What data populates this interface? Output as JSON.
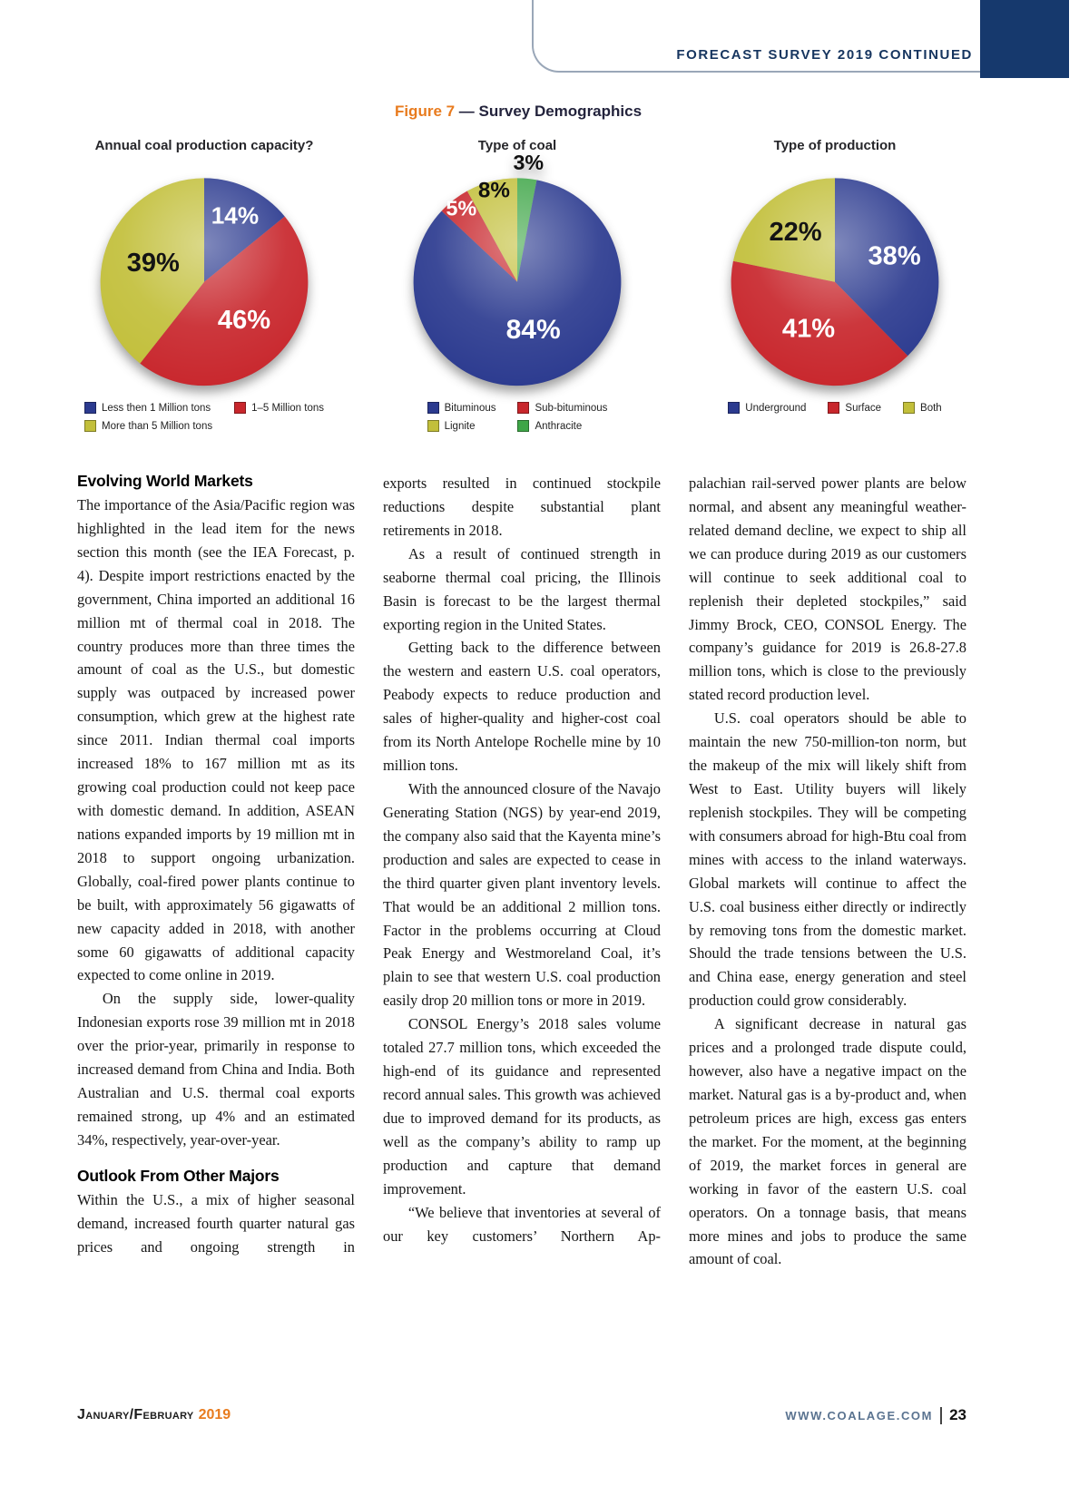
{
  "header": {
    "title": "FORECAST SURVEY 2019 CONTINUED"
  },
  "figure": {
    "label": "Figure 7",
    "title": " — Survey Demographics"
  },
  "chart_data": [
    {
      "type": "pie",
      "title": "Annual coal production capacity?",
      "legend_position": "bottom",
      "legend_columns": 2,
      "slices": [
        {
          "label": "Less then 1 Million tons",
          "value": 14,
          "pct": "14%",
          "color": "#2b3a8f",
          "label_color": "#ffffff",
          "label_r": 0.69,
          "font_size": 27
        },
        {
          "label": "1–5 Million tons",
          "value": 46,
          "pct": "46%",
          "color": "#c8262c",
          "label_color": "#ffffff",
          "label_r": 0.54,
          "font_size": 30
        },
        {
          "label": "More than 5 Million tons",
          "value": 39,
          "pct": "39%",
          "color": "#c2bf3a",
          "label_color": "#141414",
          "label_r": 0.52,
          "font_size": 30
        }
      ],
      "legend": [
        {
          "label": "Less then 1 Million tons",
          "color": "#2b3a8f"
        },
        {
          "label": "1–5 Million tons",
          "color": "#c8262c"
        },
        {
          "label": "More than 5 Million tons",
          "color": "#c2bf3a"
        }
      ]
    },
    {
      "type": "pie",
      "title": "Type of coal",
      "legend_position": "bottom",
      "legend_columns": 2,
      "slices": [
        {
          "label": "Anthracite",
          "value": 3,
          "pct": "3%",
          "color": "#3fa648",
          "label_color": "#101010",
          "label_r": 1.14,
          "font_size": 24
        },
        {
          "label": "Bituminous",
          "value": 84,
          "pct": "84%",
          "color": "#2b3a8f",
          "label_color": "#ffffff",
          "label_r": 0.5,
          "font_size": 31
        },
        {
          "label": "Sub-bituminous",
          "value": 5,
          "pct": "5%",
          "color": "#c8262c",
          "label_color": "#ffffff",
          "label_r": 0.88,
          "font_size": 24
        },
        {
          "label": "Lignite",
          "value": 8,
          "pct": "8%",
          "color": "#c2bf3a",
          "label_color": "#101010",
          "label_r": 0.9,
          "font_size": 25
        }
      ],
      "legend": [
        {
          "label": "Bituminous",
          "color": "#2b3a8f"
        },
        {
          "label": "Sub-bituminous",
          "color": "#c8262c"
        },
        {
          "label": "Lignite",
          "color": "#c2bf3a"
        },
        {
          "label": "Anthracite",
          "color": "#3fa648"
        }
      ]
    },
    {
      "type": "pie",
      "title": "Type of production",
      "legend_position": "bottom",
      "legend_columns": 3,
      "slices": [
        {
          "label": "Underground",
          "value": 38,
          "pct": "38%",
          "color": "#2b3a8f",
          "label_color": "#ffffff",
          "label_r": 0.62,
          "font_size": 30
        },
        {
          "label": "Surface",
          "value": 41,
          "pct": "41%",
          "color": "#c8262c",
          "label_color": "#ffffff",
          "label_r": 0.53,
          "font_size": 30
        },
        {
          "label": "Both",
          "value": 22,
          "pct": "22%",
          "color": "#c2bf3a",
          "label_color": "#141414",
          "label_r": 0.6,
          "font_size": 30
        }
      ],
      "legend": [
        {
          "label": "Underground",
          "color": "#2b3a8f"
        },
        {
          "label": "Surface",
          "color": "#c8262c"
        },
        {
          "label": "Both",
          "color": "#c2bf3a"
        }
      ]
    }
  ],
  "columns": {
    "col1": {
      "heading1": "Evolving World Markets",
      "para1": "The importance of the Asia/Pacific region was highlighted in the lead item for the news section this month (see the IEA Forecast, p. 4). Despite import restrictions enacted by the government, China imported an additional 16 million mt of thermal coal in 2018. The country produces more than three times the amount of coal as the U.S., but domestic supply was outpaced by increased power consumption, which grew at the highest rate since 2011. Indian thermal coal imports increased 18% to 167 million mt as its growing coal production could not keep pace with domestic demand. In addition, ASEAN nations expanded imports by 19 million mt in 2018 to support ongoing urbanization. Globally, coal-fired power plants continue to be built, with approximately 56 gigawatts of new capacity added in 2018, with another some 60 gigawatts of additional capacity expected to come online in 2019.",
      "para2": "On the supply side, lower-quality Indonesian exports rose 39 million mt in 2018 over the prior-year, primarily in response to increased demand from China and India. Both Australian and U.S. thermal coal exports remained strong, up 4% and an estimated 34%, respectively, year-over-year.",
      "heading2": "Outlook From Other Majors",
      "para3": "Within the U.S., a mix of higher seasonal demand, increased fourth quarter natural gas prices and ongoing strength in"
    },
    "col2": {
      "para1": "exports resulted in continued stockpile reductions despite substantial plant retirements in 2018.",
      "para2": "As a result of continued strength in seaborne thermal coal pricing, the Illinois Basin is forecast to be the largest thermal exporting region in the United States.",
      "para3": "Getting back to the difference between the western and eastern U.S. coal operators, Peabody expects to reduce production and sales of higher-quality and higher-cost coal from its North Antelope Rochelle mine by 10 million tons.",
      "para4": "With the announced closure of the Navajo Generating Station (NGS) by year-end 2019, the company also said that the Kayenta mine’s production and sales are expected to cease in the third quarter given plant inventory levels. That would be an additional 2 million tons. Factor in the problems occurring at Cloud Peak Energy and Westmoreland Coal, it’s plain to see that western U.S. coal production easily drop 20 million tons or more in 2019.",
      "para5": "CONSOL Energy’s 2018 sales volume totaled 27.7 million tons, which exceeded the high-end of its guidance and represented record annual sales. This growth was achieved due to improved demand for its products, as well as the company’s ability to ramp up production and capture that demand improvement.",
      "para6": "“We believe that inventories at several of our key customers’ Northern Ap-"
    },
    "col3": {
      "para1": "palachian rail-served power plants are below normal, and absent any meaningful weather-related demand decline, we expect to ship all we can produce during 2019 as our customers will continue to seek additional coal to replenish their depleted stockpiles,” said Jimmy Brock, CEO, CONSOL Energy. The company’s guidance for 2019 is 26.8-27.8 million tons, which is close to the previously stated record production level.",
      "para2": "U.S. coal operators should be able to maintain the new 750-million-ton norm, but the makeup of the mix will likely shift from West to East. Utility buyers will likely replenish stockpiles. They will be competing with consumers abroad for high-Btu coal from mines with access to the inland waterways. Global markets will continue to affect the U.S. coal business either directly or indirectly by removing tons from the domestic market. Should the trade tensions between the U.S. and China ease, energy generation and steel production could grow considerably.",
      "para3": "A significant decrease in natural gas prices and a prolonged trade dispute could, however, also have a negative impact on the market. Natural gas is a by-product and, when petroleum prices are high, excess gas enters the market. For the moment, at the beginning of 2019, the market forces in general are working in favor of the eastern U.S. coal operators. On a tonnage basis, that means more mines and jobs to produce the same amount of coal."
    }
  },
  "footer": {
    "issue": "January/February",
    "year": "2019",
    "website": "WWW.COALAGE.COM",
    "page_number": "23"
  }
}
